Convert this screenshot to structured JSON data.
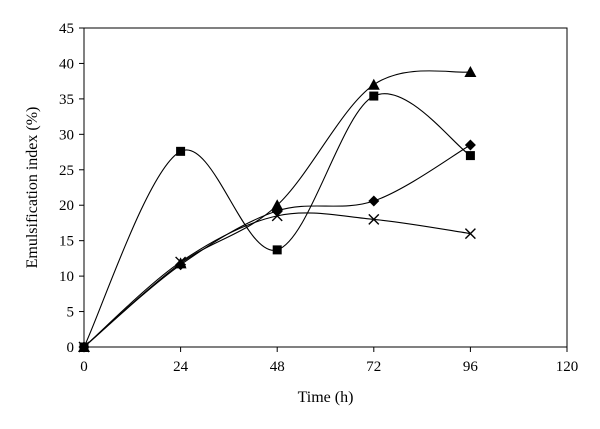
{
  "chart_data": {
    "type": "line",
    "title": "",
    "xlabel": "Time (h)",
    "ylabel": "Emulsification index (%)",
    "xlim": [
      0,
      120
    ],
    "ylim": [
      0,
      45
    ],
    "xticks": [
      "0",
      "24",
      "48",
      "72",
      "96",
      "120"
    ],
    "yticks": [
      "0",
      "5",
      "10",
      "15",
      "20",
      "25",
      "30",
      "35",
      "40",
      "45"
    ],
    "grid": false,
    "legend": "none",
    "series": [
      {
        "marker": "square",
        "x": [
          0,
          24,
          48,
          72,
          96
        ],
        "y": [
          0,
          27.6,
          13.7,
          35.4,
          27.0
        ]
      },
      {
        "marker": "triangle",
        "x": [
          0,
          24,
          48,
          72,
          96
        ],
        "y": [
          0,
          11.8,
          20.0,
          37.0,
          38.8
        ]
      },
      {
        "marker": "diamond",
        "x": [
          0,
          24,
          48,
          72,
          96
        ],
        "y": [
          0,
          11.6,
          19.2,
          20.6,
          28.5
        ]
      },
      {
        "marker": "cross",
        "x": [
          0,
          24,
          48,
          72,
          96
        ],
        "y": [
          0,
          12.0,
          18.5,
          18.0,
          16.0
        ]
      }
    ]
  }
}
